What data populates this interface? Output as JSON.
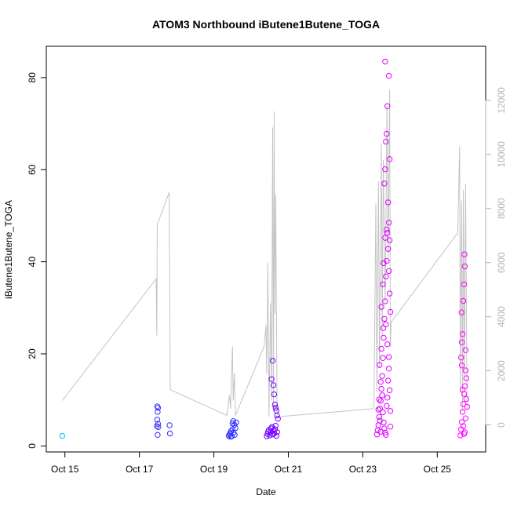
{
  "chart_data": {
    "type": "scatter",
    "title": "ATOM3 Northbound iButene1Butene_TOGA",
    "xlabel": "Date",
    "ylabel": "iButene1Butene_TOGA",
    "x_ticks": [
      "Oct 15",
      "Oct 17",
      "Oct 19",
      "Oct 21",
      "Oct 23",
      "Oct 25"
    ],
    "x_tick_days": [
      15,
      17,
      19,
      21,
      23,
      25
    ],
    "xlim": [
      14.5,
      26.3
    ],
    "ylim": [
      -1.3,
      86.8
    ],
    "y_ticks": [
      0,
      20,
      40,
      60,
      80
    ],
    "y2lim": [
      -1000,
      14000
    ],
    "y2_ticks": [
      0,
      2000,
      4000,
      6000,
      8000,
      10000,
      12000
    ],
    "grid": false,
    "legend": "none",
    "colors": {
      "early": "#00bfff",
      "mid": "#3030ff",
      "late": "#ff00ff",
      "altitude_line": "#c4c4c4"
    },
    "points": [
      {
        "x": 14.93,
        "y": 2.2
      },
      {
        "x": 17.48,
        "y": 8.6
      },
      {
        "x": 17.5,
        "y": 8.3
      },
      {
        "x": 17.49,
        "y": 7.4
      },
      {
        "x": 17.48,
        "y": 5.7
      },
      {
        "x": 17.5,
        "y": 4.8
      },
      {
        "x": 17.47,
        "y": 4.3
      },
      {
        "x": 17.51,
        "y": 4.1
      },
      {
        "x": 17.49,
        "y": 2.4
      },
      {
        "x": 17.81,
        "y": 4.5
      },
      {
        "x": 17.82,
        "y": 2.7
      },
      {
        "x": 19.4,
        "y": 2.2
      },
      {
        "x": 19.42,
        "y": 2.5
      },
      {
        "x": 19.44,
        "y": 2.8
      },
      {
        "x": 19.46,
        "y": 3.2
      },
      {
        "x": 19.48,
        "y": 2.1
      },
      {
        "x": 19.5,
        "y": 3.6
      },
      {
        "x": 19.52,
        "y": 5.4
      },
      {
        "x": 19.5,
        "y": 4.9
      },
      {
        "x": 19.55,
        "y": 4.6
      },
      {
        "x": 19.53,
        "y": 2.9
      },
      {
        "x": 19.56,
        "y": 2.4
      },
      {
        "x": 19.58,
        "y": 3.9
      },
      {
        "x": 19.6,
        "y": 5.1
      },
      {
        "x": 19.45,
        "y": 2.0
      },
      {
        "x": 20.42,
        "y": 2.1
      },
      {
        "x": 20.44,
        "y": 2.6
      },
      {
        "x": 20.46,
        "y": 3.1
      },
      {
        "x": 20.48,
        "y": 3.5
      },
      {
        "x": 20.5,
        "y": 2.3
      },
      {
        "x": 20.52,
        "y": 2.9
      },
      {
        "x": 20.54,
        "y": 3.8
      },
      {
        "x": 20.56,
        "y": 4.1
      },
      {
        "x": 20.58,
        "y": 2.5
      },
      {
        "x": 20.6,
        "y": 3.3
      },
      {
        "x": 20.62,
        "y": 2.7
      },
      {
        "x": 20.64,
        "y": 3.6
      },
      {
        "x": 20.66,
        "y": 4.4
      },
      {
        "x": 20.68,
        "y": 2.2
      },
      {
        "x": 20.7,
        "y": 3.0
      },
      {
        "x": 20.55,
        "y": 14.5
      },
      {
        "x": 20.58,
        "y": 18.5
      },
      {
        "x": 20.6,
        "y": 13.2
      },
      {
        "x": 20.62,
        "y": 11.2
      },
      {
        "x": 20.64,
        "y": 9.0
      },
      {
        "x": 20.66,
        "y": 8.3
      },
      {
        "x": 20.68,
        "y": 7.7
      },
      {
        "x": 20.7,
        "y": 6.6
      },
      {
        "x": 20.72,
        "y": 5.9
      },
      {
        "x": 23.38,
        "y": 2.5
      },
      {
        "x": 23.4,
        "y": 3.4
      },
      {
        "x": 23.42,
        "y": 4.5
      },
      {
        "x": 23.44,
        "y": 6.3
      },
      {
        "x": 23.46,
        "y": 8.1
      },
      {
        "x": 23.48,
        "y": 9.8
      },
      {
        "x": 23.5,
        "y": 12.4
      },
      {
        "x": 23.52,
        "y": 15.2
      },
      {
        "x": 23.54,
        "y": 19.1
      },
      {
        "x": 23.56,
        "y": 23.5
      },
      {
        "x": 23.58,
        "y": 27.6
      },
      {
        "x": 23.6,
        "y": 31.4
      },
      {
        "x": 23.62,
        "y": 36.8
      },
      {
        "x": 23.64,
        "y": 40.2
      },
      {
        "x": 23.66,
        "y": 46.3
      },
      {
        "x": 23.68,
        "y": 52.9
      },
      {
        "x": 23.58,
        "y": 57.0
      },
      {
        "x": 23.6,
        "y": 60.1
      },
      {
        "x": 23.62,
        "y": 66.1
      },
      {
        "x": 23.64,
        "y": 67.8
      },
      {
        "x": 23.66,
        "y": 73.8
      },
      {
        "x": 23.6,
        "y": 83.5
      },
      {
        "x": 23.7,
        "y": 80.4
      },
      {
        "x": 23.72,
        "y": 62.3
      },
      {
        "x": 23.7,
        "y": 48.5
      },
      {
        "x": 23.72,
        "y": 44.7
      },
      {
        "x": 23.68,
        "y": 42.8
      },
      {
        "x": 23.7,
        "y": 38.0
      },
      {
        "x": 23.72,
        "y": 33.1
      },
      {
        "x": 23.74,
        "y": 29.1
      },
      {
        "x": 23.55,
        "y": 25.6
      },
      {
        "x": 23.5,
        "y": 21.1
      },
      {
        "x": 23.45,
        "y": 17.6
      },
      {
        "x": 23.48,
        "y": 13.9
      },
      {
        "x": 23.52,
        "y": 11.0
      },
      {
        "x": 23.54,
        "y": 7.3
      },
      {
        "x": 23.56,
        "y": 5.1
      },
      {
        "x": 23.58,
        "y": 3.8
      },
      {
        "x": 23.6,
        "y": 2.9
      },
      {
        "x": 23.62,
        "y": 2.4
      },
      {
        "x": 23.64,
        "y": 8.7
      },
      {
        "x": 23.66,
        "y": 10.5
      },
      {
        "x": 23.68,
        "y": 14.2
      },
      {
        "x": 23.7,
        "y": 16.8
      },
      {
        "x": 23.72,
        "y": 12.1
      },
      {
        "x": 23.74,
        "y": 7.6
      },
      {
        "x": 23.74,
        "y": 4.2
      },
      {
        "x": 23.5,
        "y": 30.2
      },
      {
        "x": 23.54,
        "y": 35.1
      },
      {
        "x": 23.56,
        "y": 39.7
      },
      {
        "x": 23.6,
        "y": 45.2
      },
      {
        "x": 23.64,
        "y": 47.0
      },
      {
        "x": 23.62,
        "y": 26.4
      },
      {
        "x": 23.66,
        "y": 22.1
      },
      {
        "x": 23.7,
        "y": 19.3
      },
      {
        "x": 23.44,
        "y": 10.1
      },
      {
        "x": 23.42,
        "y": 7.9
      },
      {
        "x": 23.46,
        "y": 5.5
      },
      {
        "x": 23.48,
        "y": 3.1
      },
      {
        "x": 25.62,
        "y": 2.3
      },
      {
        "x": 25.64,
        "y": 3.6
      },
      {
        "x": 25.66,
        "y": 5.2
      },
      {
        "x": 25.68,
        "y": 7.4
      },
      {
        "x": 25.7,
        "y": 9.1
      },
      {
        "x": 25.72,
        "y": 11.3
      },
      {
        "x": 25.74,
        "y": 13.0
      },
      {
        "x": 25.76,
        "y": 16.4
      },
      {
        "x": 25.64,
        "y": 19.2
      },
      {
        "x": 25.66,
        "y": 22.5
      },
      {
        "x": 25.68,
        "y": 24.3
      },
      {
        "x": 25.65,
        "y": 29.0
      },
      {
        "x": 25.72,
        "y": 35.1
      },
      {
        "x": 25.74,
        "y": 39.0
      },
      {
        "x": 25.73,
        "y": 41.6
      },
      {
        "x": 25.7,
        "y": 31.5
      },
      {
        "x": 25.76,
        "y": 20.8
      },
      {
        "x": 25.78,
        "y": 14.7
      },
      {
        "x": 25.78,
        "y": 10.2
      },
      {
        "x": 25.76,
        "y": 6.0
      },
      {
        "x": 25.74,
        "y": 3.0
      },
      {
        "x": 25.72,
        "y": 2.6
      },
      {
        "x": 25.7,
        "y": 4.3
      },
      {
        "x": 25.68,
        "y": 12.2
      },
      {
        "x": 25.66,
        "y": 17.5
      },
      {
        "x": 25.8,
        "y": 8.5
      }
    ],
    "altitude_line": [
      {
        "x": 14.93,
        "y2": 900
      },
      {
        "x": 17.45,
        "y2": 5400
      },
      {
        "x": 17.47,
        "y2": 3300
      },
      {
        "x": 17.48,
        "y2": 7400
      },
      {
        "x": 17.8,
        "y2": 8600
      },
      {
        "x": 17.83,
        "y2": 1300
      },
      {
        "x": 19.35,
        "y2": 350
      },
      {
        "x": 19.42,
        "y2": 1100
      },
      {
        "x": 19.45,
        "y2": 600
      },
      {
        "x": 19.47,
        "y2": 1700
      },
      {
        "x": 19.5,
        "y2": 2900
      },
      {
        "x": 19.52,
        "y2": 900
      },
      {
        "x": 19.55,
        "y2": 1900
      },
      {
        "x": 19.58,
        "y2": 350
      },
      {
        "x": 20.35,
        "y2": 2900
      },
      {
        "x": 20.4,
        "y2": 3700
      },
      {
        "x": 20.42,
        "y2": 1900
      },
      {
        "x": 20.45,
        "y2": 6000
      },
      {
        "x": 20.48,
        "y2": 300
      },
      {
        "x": 20.52,
        "y2": 4500
      },
      {
        "x": 20.55,
        "y2": 900
      },
      {
        "x": 20.58,
        "y2": 11000
      },
      {
        "x": 20.6,
        "y2": 500
      },
      {
        "x": 20.62,
        "y2": 11600
      },
      {
        "x": 20.64,
        "y2": 4100
      },
      {
        "x": 20.66,
        "y2": 8500
      },
      {
        "x": 20.7,
        "y2": 300
      },
      {
        "x": 23.3,
        "y2": 600
      },
      {
        "x": 23.35,
        "y2": 8200
      },
      {
        "x": 23.38,
        "y2": 1200
      },
      {
        "x": 23.42,
        "y2": 9000
      },
      {
        "x": 23.45,
        "y2": 2100
      },
      {
        "x": 23.5,
        "y2": 10400
      },
      {
        "x": 23.52,
        "y2": 3300
      },
      {
        "x": 23.55,
        "y2": 9800
      },
      {
        "x": 23.6,
        "y2": 4500
      },
      {
        "x": 23.65,
        "y2": 11800
      },
      {
        "x": 23.68,
        "y2": 6200
      },
      {
        "x": 23.72,
        "y2": 12400
      },
      {
        "x": 23.74,
        "y2": 2900
      },
      {
        "x": 23.76,
        "y2": 3800
      },
      {
        "x": 25.55,
        "y2": 7100
      },
      {
        "x": 25.6,
        "y2": 10300
      },
      {
        "x": 25.62,
        "y2": 1200
      },
      {
        "x": 25.65,
        "y2": 8300
      },
      {
        "x": 25.68,
        "y2": 500
      },
      {
        "x": 25.7,
        "y2": 8700
      },
      {
        "x": 25.73,
        "y2": 1800
      },
      {
        "x": 25.76,
        "y2": 8900
      },
      {
        "x": 25.8,
        "y2": 600
      }
    ]
  }
}
